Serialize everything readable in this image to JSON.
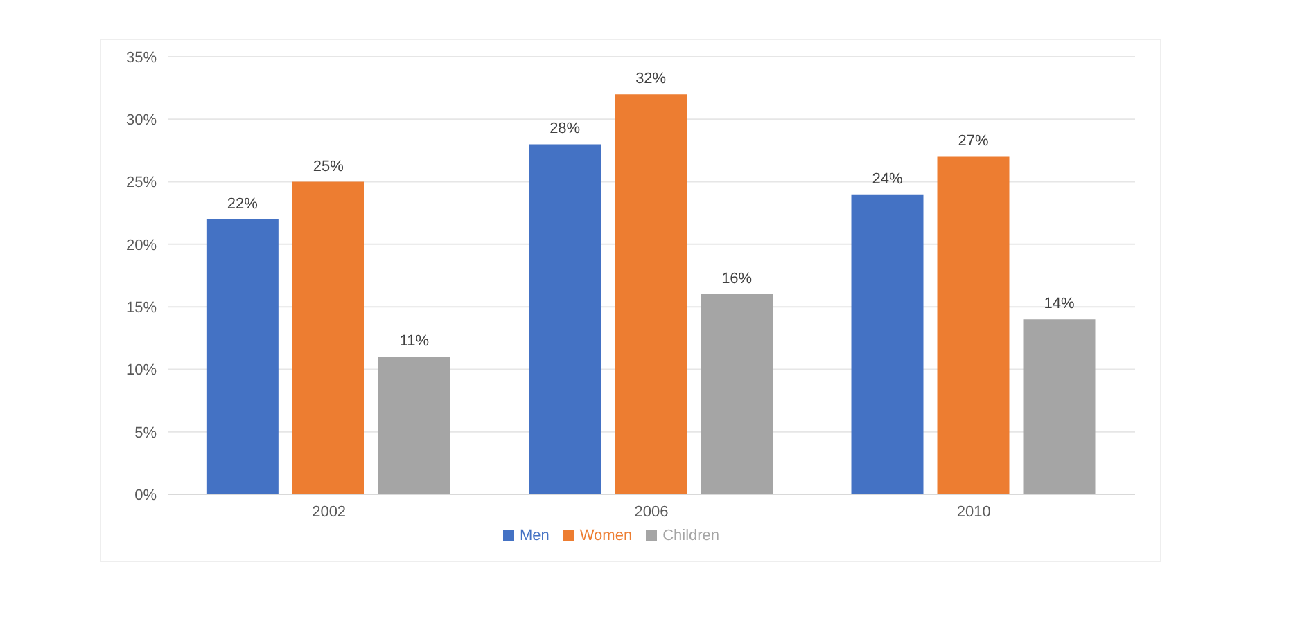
{
  "chart_data": {
    "type": "bar",
    "categories": [
      "2002",
      "2006",
      "2010"
    ],
    "series": [
      {
        "name": "Men",
        "color": "#4472c4",
        "values": [
          22,
          28,
          24
        ],
        "value_labels": [
          "22%",
          "28%",
          "24%"
        ]
      },
      {
        "name": "Women",
        "color": "#ed7d31",
        "values": [
          25,
          32,
          27
        ],
        "value_labels": [
          "25%",
          "32%",
          "27%"
        ]
      },
      {
        "name": "Children",
        "color": "#a5a5a5",
        "values": [
          11,
          16,
          14
        ],
        "value_labels": [
          "11%",
          "16%",
          "14%"
        ]
      }
    ],
    "ylim": [
      0,
      35
    ],
    "yticks": [
      {
        "value": 0,
        "label": "0%"
      },
      {
        "value": 5,
        "label": "5%"
      },
      {
        "value": 10,
        "label": "10%"
      },
      {
        "value": 15,
        "label": "15%"
      },
      {
        "value": 20,
        "label": "20%"
      },
      {
        "value": 25,
        "label": "25%"
      },
      {
        "value": 30,
        "label": "30%"
      },
      {
        "value": 35,
        "label": "35%"
      }
    ],
    "grid": "y",
    "legend": "bottom"
  }
}
